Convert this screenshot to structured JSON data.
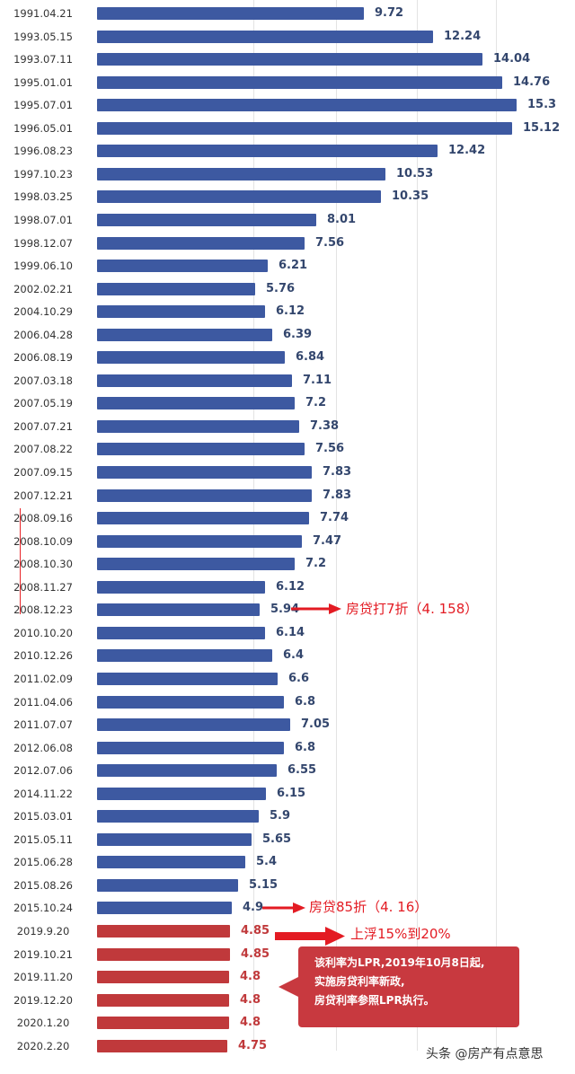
{
  "colors": {
    "bar_primary": "#3d59a1",
    "bar_highlight": "#c0393b",
    "value_primary": "#33466d",
    "value_highlight": "#c0393b",
    "annotation": "#e31b23"
  },
  "chart_data": {
    "type": "bar",
    "orientation": "horizontal",
    "categories": [
      "1991.04.21",
      "1993.05.15",
      "1993.07.11",
      "1995.01.01",
      "1995.07.01",
      "1996.05.01",
      "1996.08.23",
      "1997.10.23",
      "1998.03.25",
      "1998.07.01",
      "1998.12.07",
      "1999.06.10",
      "2002.02.21",
      "2004.10.29",
      "2006.04.28",
      "2006.08.19",
      "2007.03.18",
      "2007.05.19",
      "2007.07.21",
      "2007.08.22",
      "2007.09.15",
      "2007.12.21",
      "2008.09.16",
      "2008.10.09",
      "2008.10.30",
      "2008.11.27",
      "2008.12.23",
      "2010.10.20",
      "2010.12.26",
      "2011.02.09",
      "2011.04.06",
      "2011.07.07",
      "2012.06.08",
      "2012.07.06",
      "2014.11.22",
      "2015.03.01",
      "2015.05.11",
      "2015.06.28",
      "2015.08.26",
      "2015.10.24",
      "2019.9.20",
      "2019.10.21",
      "2019.11.20",
      "2019.12.20",
      "2020.1.20",
      "2020.2.20"
    ],
    "values": [
      9.72,
      12.24,
      14.04,
      14.76,
      15.3,
      15.12,
      12.42,
      10.53,
      10.35,
      8.01,
      7.56,
      6.21,
      5.76,
      6.12,
      6.39,
      6.84,
      7.11,
      7.2,
      7.38,
      7.56,
      7.83,
      7.83,
      7.74,
      7.47,
      7.2,
      6.12,
      5.94,
      6.14,
      6.4,
      6.6,
      6.8,
      7.05,
      6.8,
      6.55,
      6.15,
      5.9,
      5.65,
      5.4,
      5.15,
      4.9,
      4.85,
      4.85,
      4.8,
      4.8,
      4.8,
      4.75
    ],
    "value_labels": [
      "9.72",
      "12.24",
      "14.04",
      "14.76",
      "15.3",
      "15.12",
      "12.42",
      "10.53",
      "10.35",
      "8.01",
      "7.56",
      "6.21",
      "5.76",
      "6.12",
      "6.39",
      "6.84",
      "7.11",
      "7.2",
      "7.38",
      "7.56",
      "7.83",
      "7.83",
      "7.74",
      "7.47",
      "7.2",
      "6.12",
      "5.94",
      "6.14",
      "6.4",
      "6.6",
      "6.8",
      "7.05",
      "6.8",
      "6.55",
      "6.15",
      "5.9",
      "5.65",
      "5.4",
      "5.15",
      "4.9",
      "4.85",
      "4.85",
      "4.8",
      "4.8",
      "4.8",
      "4.75"
    ],
    "highlight_from_index": 40,
    "grid": true,
    "xlim": [
      0,
      15.3
    ]
  },
  "annotations": {
    "discount_2008": "房贷打7折（4. 158）",
    "discount_2015": "房贷85折（4. 16）",
    "float_2019": "上浮15%到20%"
  },
  "callout": {
    "lines": [
      "该利率为LPR,2019年10月8日起,",
      "实施房贷利率新政,",
      "房贷利率参照LPR执行。"
    ]
  },
  "watermark": "头条 @房产有点意思"
}
